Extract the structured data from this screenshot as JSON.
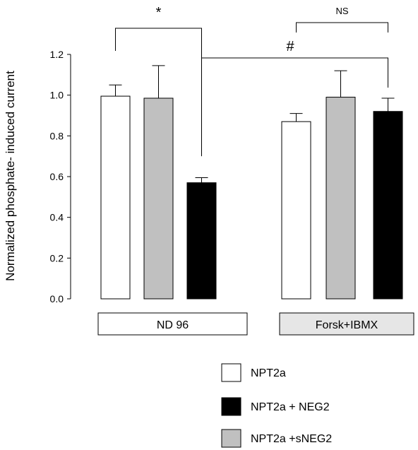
{
  "chart_data": {
    "type": "bar",
    "ylabel": "Normalized phosphate- induced current",
    "ylim": [
      0,
      1.2
    ],
    "yticks": [
      "0.0",
      "0.2",
      "0.4",
      "0.6",
      "0.8",
      "1.0",
      "1.2"
    ],
    "groups": [
      {
        "label": "ND 96",
        "box_color": "#ffffff"
      },
      {
        "label": "Forsk+IBMX",
        "box_color": "#e6e6e6"
      }
    ],
    "series": [
      {
        "name": "NPT2a",
        "color": "#ffffff",
        "values": [
          0.995,
          0.87
        ],
        "errors": [
          0.055,
          0.04
        ]
      },
      {
        "name": "NPT2a +sNEG2",
        "color": "#c0c0c0",
        "values": [
          0.985,
          0.99
        ],
        "errors": [
          0.16,
          0.13
        ]
      },
      {
        "name": "NPT2a + NEG2",
        "color": "#000000",
        "values": [
          0.57,
          0.92
        ],
        "errors": [
          0.025,
          0.065
        ]
      }
    ],
    "legend_order": [
      "NPT2a",
      "NPT2a + NEG2",
      "NPT2a +sNEG2"
    ],
    "annotations": [
      {
        "text": "*",
        "compares": "ND 96: NPT2a vs NPT2a + NEG2"
      },
      {
        "text": "NS",
        "compares": "Forsk+IBMX: NPT2a vs NPT2a + NEG2"
      },
      {
        "text": "#",
        "compares": "NPT2a + NEG2: ND 96 vs Forsk+IBMX"
      }
    ]
  }
}
